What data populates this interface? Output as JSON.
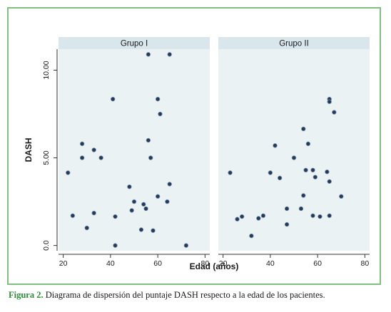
{
  "caption": {
    "label": "Figura 2.",
    "text": " Diagrama de dispersión del puntaje DASH respecto a la edad de los pacientes."
  },
  "colors": {
    "frame": "#7fbf7f",
    "panel_bg": "#eaf2f3",
    "strip_bg": "#d9e6eb",
    "marker": "#1f3a5a",
    "caption_label": "#2e8b3c"
  },
  "chart_data": {
    "type": "scatter",
    "xlabel": "Edad (años)",
    "ylabel": "DASH",
    "xlim": [
      18,
      82
    ],
    "ylim": [
      -0.3,
      11.2
    ],
    "xticks": [
      20,
      40,
      60,
      80
    ],
    "yticks": [
      0,
      5,
      10
    ],
    "ytick_labels": [
      "0.0",
      "5.00",
      "10.00"
    ],
    "grid": false,
    "panels": [
      {
        "title": "Grupo I",
        "points": [
          {
            "x": 22,
            "y": 4.15
          },
          {
            "x": 24,
            "y": 1.7
          },
          {
            "x": 28,
            "y": 5.8
          },
          {
            "x": 28,
            "y": 5.0
          },
          {
            "x": 30,
            "y": 1.0
          },
          {
            "x": 33,
            "y": 5.45
          },
          {
            "x": 33,
            "y": 1.85
          },
          {
            "x": 36,
            "y": 5.0
          },
          {
            "x": 41,
            "y": 8.35
          },
          {
            "x": 42,
            "y": 1.65
          },
          {
            "x": 42,
            "y": 0.0
          },
          {
            "x": 48,
            "y": 3.35
          },
          {
            "x": 49,
            "y": 2.0
          },
          {
            "x": 50,
            "y": 2.5
          },
          {
            "x": 53,
            "y": 0.9
          },
          {
            "x": 54,
            "y": 2.35
          },
          {
            "x": 55,
            "y": 2.1
          },
          {
            "x": 56,
            "y": 10.9
          },
          {
            "x": 56,
            "y": 6.0
          },
          {
            "x": 57,
            "y": 5.0
          },
          {
            "x": 58,
            "y": 0.85
          },
          {
            "x": 60,
            "y": 8.35
          },
          {
            "x": 60,
            "y": 2.8
          },
          {
            "x": 61,
            "y": 7.5
          },
          {
            "x": 64,
            "y": 2.5
          },
          {
            "x": 65,
            "y": 10.9
          },
          {
            "x": 65,
            "y": 3.5
          },
          {
            "x": 72,
            "y": 0.0
          }
        ]
      },
      {
        "title": "Grupo II",
        "points": [
          {
            "x": 23,
            "y": 4.15
          },
          {
            "x": 26,
            "y": 1.5
          },
          {
            "x": 28,
            "y": 1.65
          },
          {
            "x": 32,
            "y": 0.55
          },
          {
            "x": 35,
            "y": 1.55
          },
          {
            "x": 37,
            "y": 1.7
          },
          {
            "x": 40,
            "y": 4.15
          },
          {
            "x": 42,
            "y": 5.7
          },
          {
            "x": 44,
            "y": 3.85
          },
          {
            "x": 47,
            "y": 2.1
          },
          {
            "x": 47,
            "y": 1.2
          },
          {
            "x": 50,
            "y": 5.0
          },
          {
            "x": 53,
            "y": 2.1
          },
          {
            "x": 54,
            "y": 6.65
          },
          {
            "x": 54,
            "y": 2.85
          },
          {
            "x": 55,
            "y": 4.3
          },
          {
            "x": 56,
            "y": 5.8
          },
          {
            "x": 58,
            "y": 4.3
          },
          {
            "x": 58,
            "y": 1.7
          },
          {
            "x": 59,
            "y": 3.9
          },
          {
            "x": 61,
            "y": 1.65
          },
          {
            "x": 64,
            "y": 4.2
          },
          {
            "x": 65,
            "y": 8.35
          },
          {
            "x": 65,
            "y": 8.2
          },
          {
            "x": 65,
            "y": 3.65
          },
          {
            "x": 65,
            "y": 1.7
          },
          {
            "x": 67,
            "y": 7.6
          },
          {
            "x": 70,
            "y": 2.8
          }
        ]
      }
    ]
  }
}
